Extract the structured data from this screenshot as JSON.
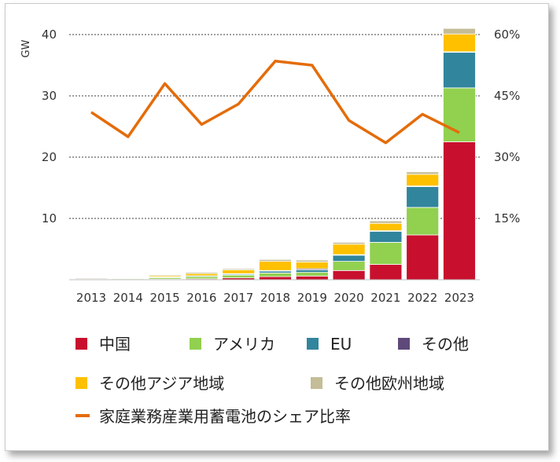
{
  "chart_data": {
    "type": "bar",
    "stacked": true,
    "title": "",
    "xlabel": "",
    "ylabel": "GW",
    "ylim": [
      0,
      40
    ],
    "yticks": [
      10,
      20,
      30,
      40
    ],
    "y2lim": [
      0,
      60
    ],
    "y2ticks": [
      "15%",
      "30%",
      "45%",
      "60%"
    ],
    "grid": true,
    "legend_position": "bottom",
    "categories": [
      "2013",
      "2014",
      "2015",
      "2016",
      "2017",
      "2018",
      "2019",
      "2020",
      "2021",
      "2022",
      "2023"
    ],
    "series": [
      {
        "name": "中国",
        "color": "#c8102e",
        "values": [
          0.0,
          0.05,
          0.1,
          0.15,
          0.3,
          0.5,
          0.6,
          1.5,
          2.5,
          7.3,
          22.5
        ]
      },
      {
        "name": "アメリカ",
        "color": "#92d050",
        "values": [
          0.1,
          0.15,
          0.25,
          0.35,
          0.45,
          0.6,
          0.6,
          1.5,
          3.6,
          4.5,
          8.8
        ]
      },
      {
        "name": "EU",
        "color": "#31859c",
        "values": [
          0.05,
          0.05,
          0.1,
          0.15,
          0.2,
          0.3,
          0.4,
          1.0,
          1.8,
          3.4,
          5.8
        ]
      },
      {
        "name": "その他",
        "color": "#5f497a",
        "values": [
          0.0,
          0.0,
          0.0,
          0.0,
          0.05,
          0.1,
          0.2,
          0.1,
          0.1,
          0.1,
          0.1
        ]
      },
      {
        "name": "その他アジア地域",
        "color": "#ffc000",
        "values": [
          0.0,
          0.0,
          0.2,
          0.35,
          0.6,
          1.5,
          1.1,
          1.7,
          1.2,
          1.9,
          2.9
        ]
      },
      {
        "name": "その他欧州地域",
        "color": "#c4bd97",
        "values": [
          0.15,
          0.1,
          0.15,
          0.2,
          0.2,
          0.3,
          0.3,
          0.3,
          0.4,
          0.4,
          0.9
        ]
      }
    ],
    "line_series": {
      "name": "家庭業務産業用蓄電池のシェア比率",
      "color": "#e46c0a",
      "axis": "secondary",
      "values": [
        41,
        35,
        48,
        38,
        43,
        53.5,
        52.5,
        39,
        33.5,
        40.5,
        36
      ]
    }
  }
}
